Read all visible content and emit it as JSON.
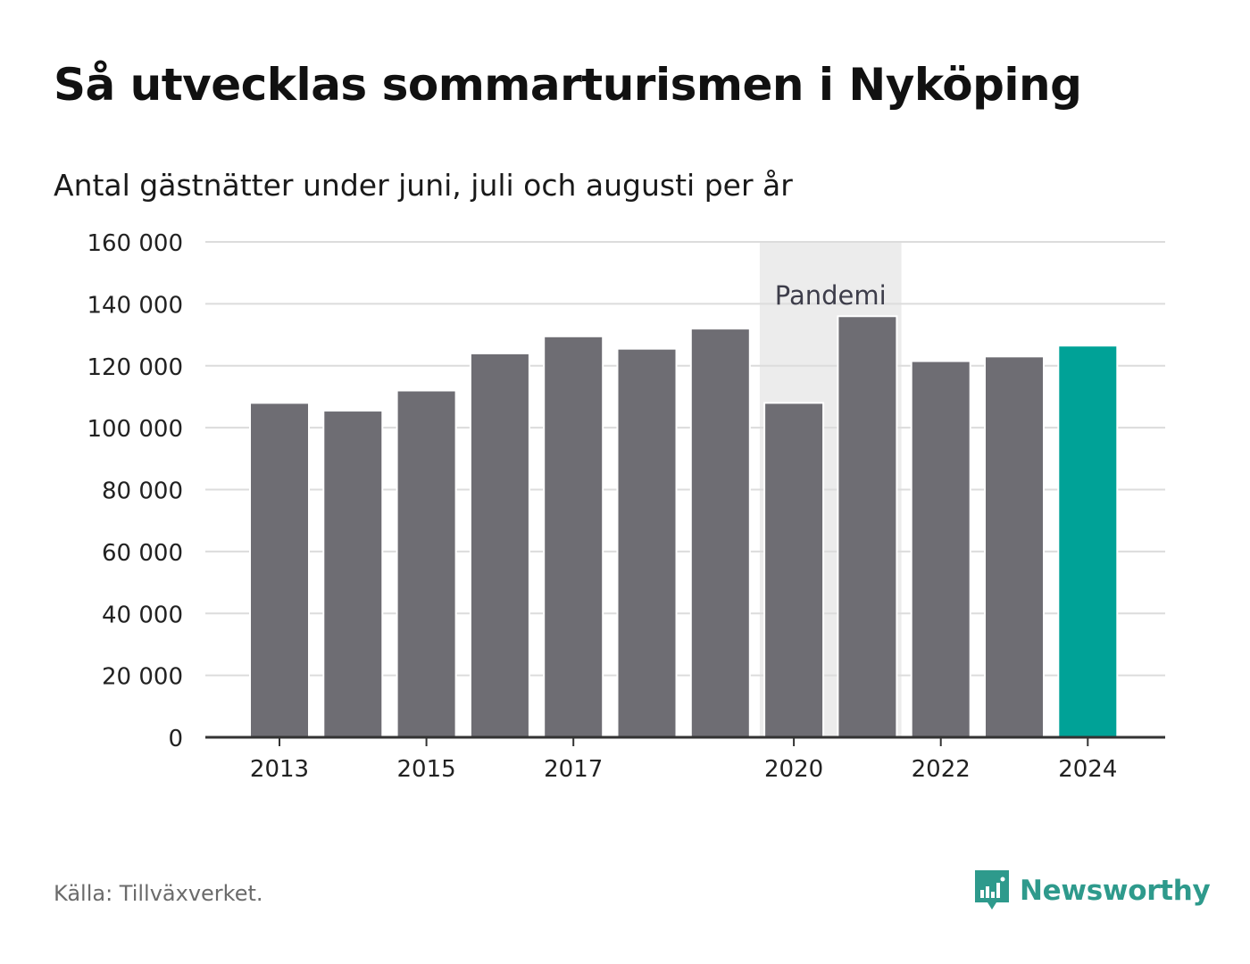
{
  "header": {
    "title": "Så utvecklas sommarturismen i Nyköping",
    "subtitle": "Antal gästnätter under juni, juli och augusti per år"
  },
  "footer": {
    "source": "Källa: Tillväxverket.",
    "brand": "Newsworthy",
    "brand_icon": "newsworthy-logo-icon"
  },
  "colors": {
    "bar": "#6e6d73",
    "highlight": "#00a297",
    "band": "#ececec",
    "grid": "#dcdcdc",
    "axis": "#333333",
    "brand": "#2e9a8c"
  },
  "chart_data": {
    "type": "bar",
    "x": [
      2013,
      2014,
      2015,
      2016,
      2017,
      2018,
      2019,
      2020,
      2021,
      2022,
      2023,
      2024
    ],
    "values": [
      108000,
      105500,
      112000,
      124000,
      129500,
      125500,
      132000,
      108000,
      136000,
      121500,
      123000,
      126500
    ],
    "highlight_x": 2024,
    "ylim": [
      0,
      160000
    ],
    "yticks": [
      0,
      20000,
      40000,
      60000,
      80000,
      100000,
      120000,
      140000,
      160000
    ],
    "ytick_labels": [
      "0",
      "20 000",
      "40 000",
      "60 000",
      "80 000",
      "100 000",
      "120 000",
      "140 000",
      "160 000"
    ],
    "xticks": [
      2013,
      2015,
      2017,
      2020,
      2022,
      2024
    ],
    "xtick_labels": [
      "2013",
      "2015",
      "2017",
      "2020",
      "2022",
      "2024"
    ],
    "annotation": {
      "label": "Pandemi",
      "x_from": 2020,
      "x_to": 2021
    },
    "grid": true,
    "legend": "none"
  }
}
